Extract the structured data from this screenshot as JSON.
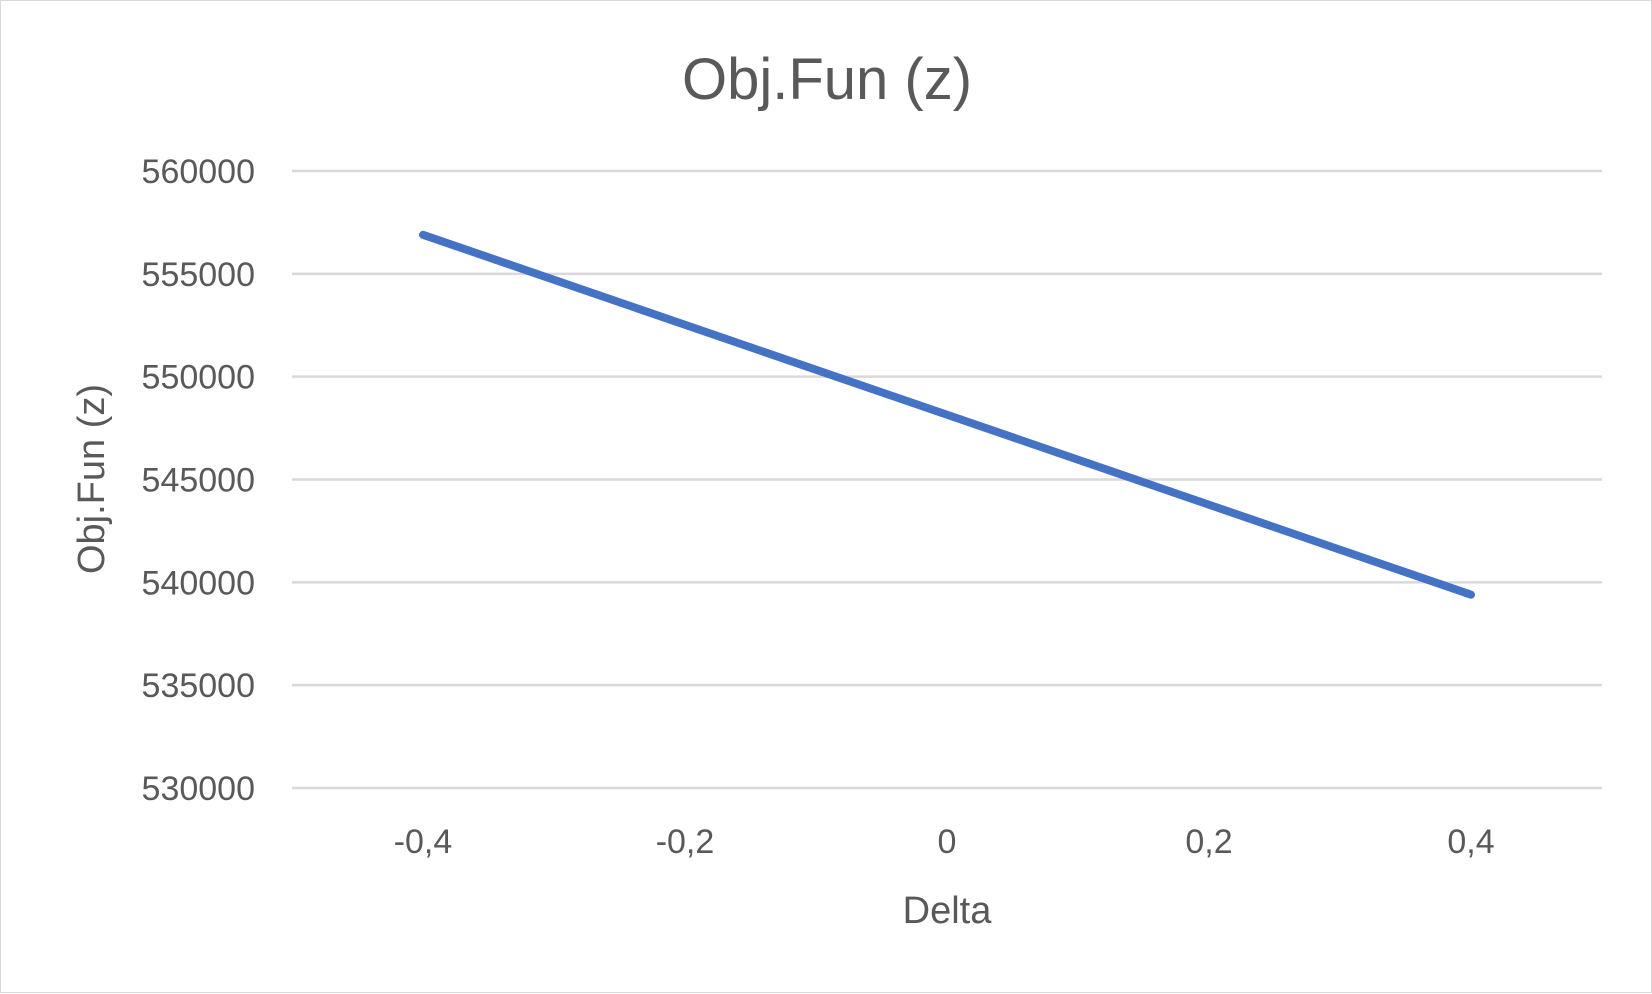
{
  "chart_data": {
    "type": "line",
    "title": "Obj.Fun (z)",
    "xlabel": "Delta",
    "ylabel": "Obj.Fun (z)",
    "x_ticks": [
      "-0,4",
      "-0,2",
      "0",
      "0,2",
      "0,4"
    ],
    "x_tick_values": [
      -0.4,
      -0.2,
      0,
      0.2,
      0.4
    ],
    "xlim": [
      -0.5,
      0.5
    ],
    "y_ticks": [
      "530000",
      "535000",
      "540000",
      "545000",
      "550000",
      "555000",
      "560000"
    ],
    "y_tick_values": [
      530000,
      535000,
      540000,
      545000,
      550000,
      555000,
      560000
    ],
    "ylim": [
      530000,
      560000
    ],
    "grid": "horizontal",
    "legend": "none",
    "series": [
      {
        "color": "#4472c4",
        "points": [
          {
            "x": -0.4,
            "y": 556900
          },
          {
            "x": 0.4,
            "y": 539400
          }
        ]
      }
    ]
  }
}
